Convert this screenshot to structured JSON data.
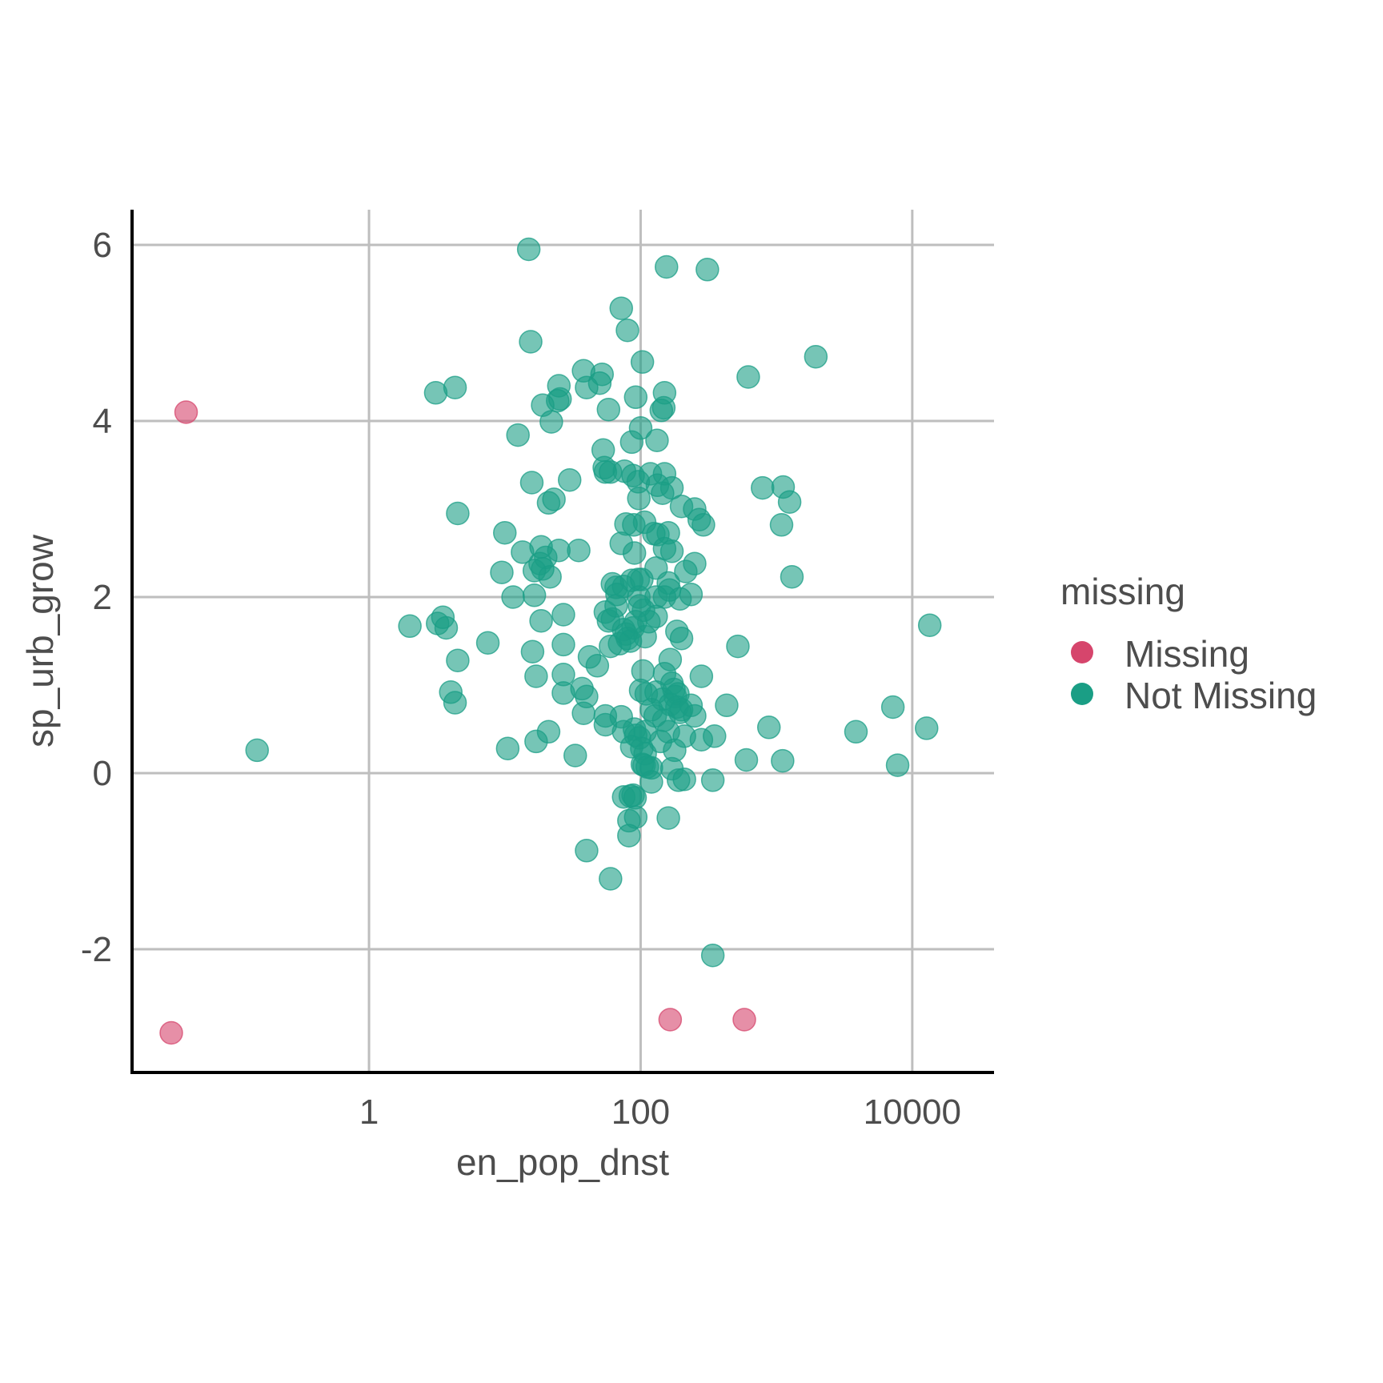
{
  "chart_data": {
    "type": "scatter",
    "title": "",
    "xlabel": "en_pop_dnst",
    "ylabel": "sp_urb_grow",
    "x_scale": "log10",
    "xlim": [
      0.018,
      40000
    ],
    "ylim": [
      -3.4,
      6.4
    ],
    "x_ticks": [
      1,
      100,
      10000
    ],
    "x_tick_labels": [
      "1",
      "100",
      "10000"
    ],
    "y_ticks": [
      -2,
      0,
      2,
      4,
      6
    ],
    "y_tick_labels": [
      "-2",
      "0",
      "2",
      "4",
      "6"
    ],
    "grid": true,
    "legend": {
      "title": "missing",
      "position": "right"
    },
    "series": [
      {
        "name": "Missing",
        "color": "#d6456c",
        "points": [
          [
            0.045,
            4.1
          ],
          [
            0.035,
            -2.95
          ],
          [
            165,
            -2.8
          ],
          [
            580,
            -2.8
          ]
        ]
      },
      {
        "name": "Not Missing",
        "color": "#1a9e85",
        "points": [
          [
            15,
            5.95
          ],
          [
            155,
            5.75
          ],
          [
            310,
            5.72
          ],
          [
            72,
            5.28
          ],
          [
            80,
            5.03
          ],
          [
            15.5,
            4.9
          ],
          [
            103,
            4.67
          ],
          [
            1950,
            4.73
          ],
          [
            620,
            4.5
          ],
          [
            38,
            4.57
          ],
          [
            52,
            4.53
          ],
          [
            40,
            4.38
          ],
          [
            25,
            4.4
          ],
          [
            50,
            4.43
          ],
          [
            3.1,
            4.32
          ],
          [
            4.3,
            4.38
          ],
          [
            92,
            4.27
          ],
          [
            150,
            4.32
          ],
          [
            19,
            4.18
          ],
          [
            24.5,
            4.23
          ],
          [
            25.5,
            4.25
          ],
          [
            58,
            4.13
          ],
          [
            142,
            4.12
          ],
          [
            148,
            4.15
          ],
          [
            22,
            3.99
          ],
          [
            100,
            3.92
          ],
          [
            12.5,
            3.84
          ],
          [
            132,
            3.78
          ],
          [
            86,
            3.76
          ],
          [
            53,
            3.67
          ],
          [
            54,
            3.47
          ],
          [
            55,
            3.42
          ],
          [
            60,
            3.42
          ],
          [
            76,
            3.43
          ],
          [
            88,
            3.38
          ],
          [
            96,
            3.31
          ],
          [
            118,
            3.4
          ],
          [
            150,
            3.4
          ],
          [
            15.8,
            3.3
          ],
          [
            30,
            3.33
          ],
          [
            133,
            3.27
          ],
          [
            170,
            3.24
          ],
          [
            145,
            3.18
          ],
          [
            21,
            3.07
          ],
          [
            23,
            3.11
          ],
          [
            97,
            3.12
          ],
          [
            200,
            3.03
          ],
          [
            250,
            3.0
          ],
          [
            4.5,
            2.95
          ],
          [
            1120,
            3.25
          ],
          [
            1250,
            3.08
          ],
          [
            790,
            3.24
          ],
          [
            78,
            2.83
          ],
          [
            89,
            2.82
          ],
          [
            107,
            2.85
          ],
          [
            270,
            2.88
          ],
          [
            290,
            2.82
          ],
          [
            1090,
            2.82
          ],
          [
            10,
            2.73
          ],
          [
            125,
            2.72
          ],
          [
            134,
            2.71
          ],
          [
            160,
            2.73
          ],
          [
            13.5,
            2.51
          ],
          [
            18.5,
            2.57
          ],
          [
            20,
            2.45
          ],
          [
            25,
            2.53
          ],
          [
            35,
            2.53
          ],
          [
            72,
            2.61
          ],
          [
            90,
            2.5
          ],
          [
            150,
            2.55
          ],
          [
            170,
            2.52
          ],
          [
            9.5,
            2.28
          ],
          [
            18.2,
            2.38
          ],
          [
            19,
            2.32
          ],
          [
            16.5,
            2.3
          ],
          [
            21.5,
            2.23
          ],
          [
            130,
            2.33
          ],
          [
            215,
            2.29
          ],
          [
            250,
            2.38
          ],
          [
            1300,
            2.23
          ],
          [
            62,
            2.15
          ],
          [
            66,
            2.11
          ],
          [
            75,
            2.12
          ],
          [
            86,
            2.19
          ],
          [
            96,
            2.2
          ],
          [
            102,
            2.2
          ],
          [
            160,
            2.16
          ],
          [
            163,
            2.08
          ],
          [
            11.5,
            2.0
          ],
          [
            16.5,
            2.02
          ],
          [
            67,
            2.03
          ],
          [
            97,
            2.0
          ],
          [
            130,
            2.0
          ],
          [
            150,
            2.0
          ],
          [
            195,
            1.98
          ],
          [
            235,
            2.03
          ],
          [
            55,
            1.83
          ],
          [
            58,
            1.73
          ],
          [
            62,
            1.75
          ],
          [
            66,
            1.9
          ],
          [
            98,
            1.9
          ],
          [
            105,
            1.85
          ],
          [
            130,
            1.78
          ],
          [
            2.0,
            1.67
          ],
          [
            3.2,
            1.7
          ],
          [
            3.5,
            1.77
          ],
          [
            3.7,
            1.65
          ],
          [
            18.5,
            1.73
          ],
          [
            27,
            1.8
          ],
          [
            75,
            1.63
          ],
          [
            78,
            1.58
          ],
          [
            80,
            1.53
          ],
          [
            84,
            1.5
          ],
          [
            88,
            1.65
          ],
          [
            92,
            1.72
          ],
          [
            108,
            1.55
          ],
          [
            115,
            1.72
          ],
          [
            185,
            1.61
          ],
          [
            200,
            1.53
          ],
          [
            13450,
            1.68
          ],
          [
            7.5,
            1.48
          ],
          [
            27,
            1.46
          ],
          [
            70,
            1.47
          ],
          [
            60,
            1.44
          ],
          [
            520,
            1.44
          ],
          [
            4.5,
            1.28
          ],
          [
            16,
            1.38
          ],
          [
            42,
            1.32
          ],
          [
            48,
            1.22
          ],
          [
            165,
            1.29
          ],
          [
            17,
            1.1
          ],
          [
            27,
            1.12
          ],
          [
            104,
            1.16
          ],
          [
            150,
            1.13
          ],
          [
            280,
            1.1
          ],
          [
            4.0,
            0.92
          ],
          [
            37,
            0.96
          ],
          [
            100,
            0.94
          ],
          [
            110,
            0.9
          ],
          [
            130,
            0.92
          ],
          [
            170,
            1.02
          ],
          [
            176,
            0.95
          ],
          [
            180,
            0.87
          ],
          [
            188,
            0.9
          ],
          [
            4.3,
            0.8
          ],
          [
            27,
            0.91
          ],
          [
            40,
            0.87
          ],
          [
            145,
            0.84
          ],
          [
            165,
            0.78
          ],
          [
            185,
            0.75
          ],
          [
            200,
            0.72
          ],
          [
            430,
            0.77
          ],
          [
            7200,
            0.75
          ],
          [
            38,
            0.68
          ],
          [
            55,
            0.65
          ],
          [
            72,
            0.64
          ],
          [
            90,
            0.5
          ],
          [
            120,
            0.72
          ],
          [
            128,
            0.65
          ],
          [
            148,
            0.6
          ],
          [
            195,
            0.69
          ],
          [
            235,
            0.77
          ],
          [
            250,
            0.65
          ],
          [
            880,
            0.52
          ],
          [
            3850,
            0.47
          ],
          [
            12750,
            0.51
          ],
          [
            17,
            0.36
          ],
          [
            21,
            0.47
          ],
          [
            55,
            0.55
          ],
          [
            75,
            0.47
          ],
          [
            92,
            0.43
          ],
          [
            98,
            0.4
          ],
          [
            108,
            0.47
          ],
          [
            140,
            0.36
          ],
          [
            160,
            0.47
          ],
          [
            210,
            0.42
          ],
          [
            280,
            0.38
          ],
          [
            350,
            0.42
          ],
          [
            0.15,
            0.26
          ],
          [
            10.5,
            0.28
          ],
          [
            33,
            0.2
          ],
          [
            86,
            0.3
          ],
          [
            102,
            0.28
          ],
          [
            108,
            0.22
          ],
          [
            178,
            0.26
          ],
          [
            600,
            0.15
          ],
          [
            1110,
            0.14
          ],
          [
            103,
            0.1
          ],
          [
            106,
            0.09
          ],
          [
            112,
            0.07
          ],
          [
            120,
            0.06
          ],
          [
            170,
            0.05
          ],
          [
            7800,
            0.09
          ],
          [
            120,
            -0.1
          ],
          [
            190,
            -0.08
          ],
          [
            210,
            -0.07
          ],
          [
            340,
            -0.08
          ],
          [
            75,
            -0.27
          ],
          [
            84,
            -0.26
          ],
          [
            88,
            -0.25
          ],
          [
            91,
            -0.28
          ],
          [
            82,
            -0.54
          ],
          [
            92,
            -0.5
          ],
          [
            160,
            -0.51
          ],
          [
            82,
            -0.71
          ],
          [
            40,
            -0.88
          ],
          [
            60,
            -1.2
          ],
          [
            340,
            -2.07
          ]
        ]
      }
    ]
  }
}
